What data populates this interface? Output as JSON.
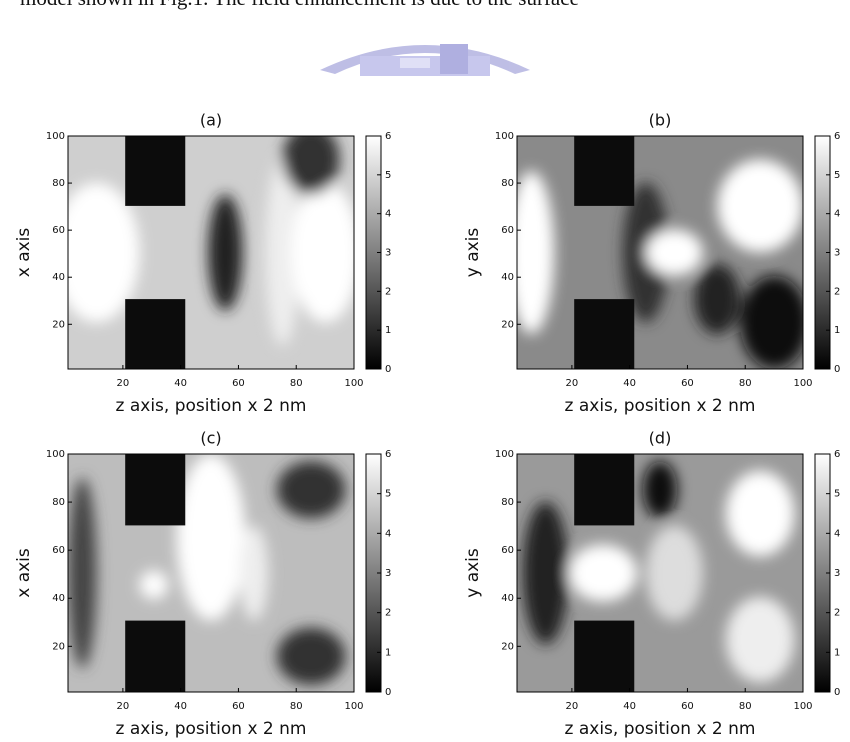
{
  "body_text": "model shown in Fig.1. The field enhancement is due to the surface",
  "chart_data": [
    {
      "type": "heatmap",
      "title": "(a)",
      "xlabel": "z axis, position x 2 nm",
      "ylabel": "x axis",
      "xlim": [
        1,
        100
      ],
      "ylim": [
        1,
        100
      ],
      "xticks": [
        20,
        40,
        60,
        80,
        100
      ],
      "yticks": [
        20,
        40,
        60,
        80,
        100
      ],
      "clim": [
        0,
        6
      ],
      "cticks": [
        0,
        1,
        2,
        3,
        4,
        5,
        6
      ],
      "colormap": "gray"
    },
    {
      "type": "heatmap",
      "title": "(b)",
      "xlabel": "z axis, position x 2 nm",
      "ylabel": "y axis",
      "xlim": [
        1,
        100
      ],
      "ylim": [
        1,
        100
      ],
      "xticks": [
        20,
        40,
        60,
        80,
        100
      ],
      "yticks": [
        20,
        40,
        60,
        80,
        100
      ],
      "clim": [
        0,
        6
      ],
      "cticks": [
        0,
        1,
        2,
        3,
        4,
        5,
        6
      ],
      "colormap": "gray"
    },
    {
      "type": "heatmap",
      "title": "(c)",
      "xlabel": "z axis, position x 2 nm",
      "ylabel": "x axis",
      "xlim": [
        1,
        100
      ],
      "ylim": [
        1,
        100
      ],
      "xticks": [
        20,
        40,
        60,
        80,
        100
      ],
      "yticks": [
        20,
        40,
        60,
        80,
        100
      ],
      "clim": [
        0,
        6
      ],
      "cticks": [
        0,
        1,
        2,
        3,
        4,
        5,
        6
      ],
      "colormap": "gray"
    },
    {
      "type": "heatmap",
      "title": "(d)",
      "xlabel": "z axis, position x 2 nm",
      "ylabel": "y axis",
      "xlim": [
        1,
        100
      ],
      "ylim": [
        1,
        100
      ],
      "xticks": [
        20,
        40,
        60,
        80,
        100
      ],
      "yticks": [
        20,
        40,
        60,
        80,
        100
      ],
      "clim": [
        0,
        6
      ],
      "cticks": [
        0,
        1,
        2,
        3,
        4,
        5,
        6
      ],
      "colormap": "gray"
    }
  ]
}
